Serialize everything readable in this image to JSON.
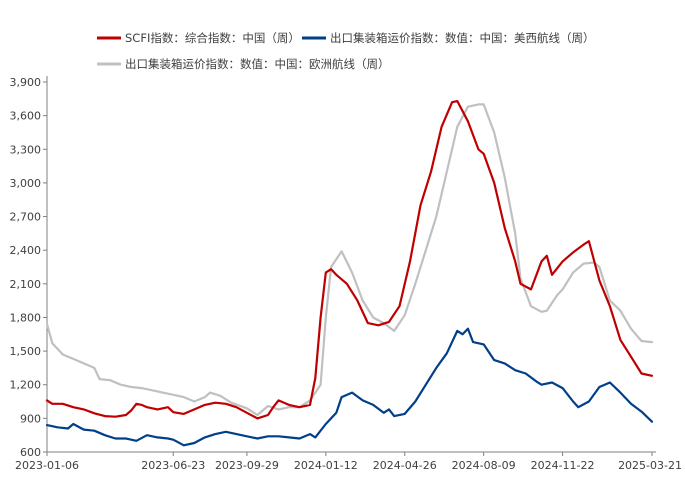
{
  "chart_data": {
    "type": "line",
    "title": "",
    "xlabel": "",
    "ylabel": "",
    "ylim": [
      600,
      3900
    ],
    "yticks": [
      600,
      900,
      1200,
      1500,
      1800,
      2100,
      2400,
      2700,
      3000,
      3300,
      3600,
      3900
    ],
    "ytick_labels": [
      "600",
      "900",
      "1,200",
      "1,500",
      "1,800",
      "2,100",
      "2,400",
      "2,700",
      "3,000",
      "3,300",
      "3,600",
      "3,900"
    ],
    "xlim": [
      "2023-01-06",
      "2025-03-21"
    ],
    "xticks": [
      "2023-01-06",
      "2023-06-23",
      "2023-09-29",
      "2024-01-12",
      "2024-04-26",
      "2024-08-09",
      "2024-11-22",
      "2025-03-21"
    ],
    "grid": false,
    "legend_position": "top",
    "series": [
      {
        "name": "SCFI指数：综合指数：中国（周）",
        "color": "#c00000",
        "points": [
          [
            "2023-01-06",
            1060
          ],
          [
            "2023-01-13",
            1030
          ],
          [
            "2023-01-27",
            1030
          ],
          [
            "2023-02-10",
            1000
          ],
          [
            "2023-02-24",
            980
          ],
          [
            "2023-03-10",
            945
          ],
          [
            "2023-03-24",
            920
          ],
          [
            "2023-04-07",
            915
          ],
          [
            "2023-04-21",
            930
          ],
          [
            "2023-04-28",
            970
          ],
          [
            "2023-05-05",
            1030
          ],
          [
            "2023-05-12",
            1020
          ],
          [
            "2023-05-19",
            1000
          ],
          [
            "2023-06-02",
            980
          ],
          [
            "2023-06-16",
            1000
          ],
          [
            "2023-06-23",
            955
          ],
          [
            "2023-07-07",
            940
          ],
          [
            "2023-07-21",
            980
          ],
          [
            "2023-08-04",
            1020
          ],
          [
            "2023-08-18",
            1040
          ],
          [
            "2023-09-01",
            1030
          ],
          [
            "2023-09-15",
            1000
          ],
          [
            "2023-09-29",
            950
          ],
          [
            "2023-10-13",
            900
          ],
          [
            "2023-10-27",
            930
          ],
          [
            "2023-11-03",
            1000
          ],
          [
            "2023-11-10",
            1060
          ],
          [
            "2023-11-24",
            1020
          ],
          [
            "2023-12-08",
            1000
          ],
          [
            "2023-12-22",
            1020
          ],
          [
            "2023-12-29",
            1260
          ],
          [
            "2024-01-05",
            1800
          ],
          [
            "2024-01-12",
            2200
          ],
          [
            "2024-01-19",
            2230
          ],
          [
            "2024-01-26",
            2180
          ],
          [
            "2024-02-09",
            2100
          ],
          [
            "2024-02-23",
            1950
          ],
          [
            "2024-03-08",
            1750
          ],
          [
            "2024-03-22",
            1730
          ],
          [
            "2024-04-05",
            1760
          ],
          [
            "2024-04-19",
            1900
          ],
          [
            "2024-05-03",
            2300
          ],
          [
            "2024-05-17",
            2800
          ],
          [
            "2024-05-31",
            3100
          ],
          [
            "2024-06-14",
            3500
          ],
          [
            "2024-06-28",
            3720
          ],
          [
            "2024-07-05",
            3730
          ],
          [
            "2024-07-19",
            3550
          ],
          [
            "2024-08-02",
            3300
          ],
          [
            "2024-08-09",
            3260
          ],
          [
            "2024-08-23",
            3000
          ],
          [
            "2024-09-06",
            2600
          ],
          [
            "2024-09-20",
            2300
          ],
          [
            "2024-09-27",
            2100
          ],
          [
            "2024-10-11",
            2050
          ],
          [
            "2024-10-25",
            2300
          ],
          [
            "2024-11-01",
            2350
          ],
          [
            "2024-11-08",
            2180
          ],
          [
            "2024-11-22",
            2300
          ],
          [
            "2024-12-06",
            2380
          ],
          [
            "2024-12-20",
            2450
          ],
          [
            "2024-12-27",
            2480
          ],
          [
            "2025-01-10",
            2130
          ],
          [
            "2025-01-24",
            1900
          ],
          [
            "2025-02-07",
            1600
          ],
          [
            "2025-02-21",
            1450
          ],
          [
            "2025-03-07",
            1300
          ],
          [
            "2025-03-21",
            1280
          ]
        ]
      },
      {
        "name": "出口集装箱运价指数：数值：中国：美西航线（周）",
        "color": "#003f8a",
        "points": [
          [
            "2023-01-06",
            840
          ],
          [
            "2023-01-20",
            820
          ],
          [
            "2023-02-03",
            810
          ],
          [
            "2023-02-10",
            850
          ],
          [
            "2023-02-24",
            800
          ],
          [
            "2023-03-10",
            790
          ],
          [
            "2023-03-24",
            750
          ],
          [
            "2023-04-07",
            720
          ],
          [
            "2023-04-21",
            720
          ],
          [
            "2023-05-05",
            700
          ],
          [
            "2023-05-19",
            750
          ],
          [
            "2023-06-02",
            730
          ],
          [
            "2023-06-16",
            720
          ],
          [
            "2023-06-23",
            710
          ],
          [
            "2023-07-07",
            660
          ],
          [
            "2023-07-21",
            680
          ],
          [
            "2023-08-04",
            730
          ],
          [
            "2023-08-18",
            760
          ],
          [
            "2023-09-01",
            780
          ],
          [
            "2023-09-15",
            760
          ],
          [
            "2023-09-29",
            740
          ],
          [
            "2023-10-13",
            720
          ],
          [
            "2023-10-27",
            740
          ],
          [
            "2023-11-10",
            740
          ],
          [
            "2023-11-24",
            730
          ],
          [
            "2023-12-08",
            720
          ],
          [
            "2023-12-22",
            760
          ],
          [
            "2023-12-29",
            730
          ],
          [
            "2024-01-12",
            850
          ],
          [
            "2024-01-26",
            950
          ],
          [
            "2024-02-02",
            1090
          ],
          [
            "2024-02-16",
            1130
          ],
          [
            "2024-03-01",
            1060
          ],
          [
            "2024-03-15",
            1020
          ],
          [
            "2024-03-29",
            950
          ],
          [
            "2024-04-05",
            980
          ],
          [
            "2024-04-12",
            920
          ],
          [
            "2024-04-26",
            940
          ],
          [
            "2024-05-10",
            1050
          ],
          [
            "2024-05-24",
            1200
          ],
          [
            "2024-06-07",
            1350
          ],
          [
            "2024-06-21",
            1480
          ],
          [
            "2024-07-05",
            1680
          ],
          [
            "2024-07-12",
            1650
          ],
          [
            "2024-07-19",
            1700
          ],
          [
            "2024-07-26",
            1580
          ],
          [
            "2024-08-09",
            1560
          ],
          [
            "2024-08-23",
            1420
          ],
          [
            "2024-09-06",
            1390
          ],
          [
            "2024-09-20",
            1330
          ],
          [
            "2024-10-04",
            1300
          ],
          [
            "2024-10-18",
            1230
          ],
          [
            "2024-10-25",
            1200
          ],
          [
            "2024-11-08",
            1220
          ],
          [
            "2024-11-22",
            1170
          ],
          [
            "2024-12-06",
            1050
          ],
          [
            "2024-12-13",
            1000
          ],
          [
            "2024-12-27",
            1050
          ],
          [
            "2025-01-10",
            1180
          ],
          [
            "2025-01-24",
            1220
          ],
          [
            "2025-02-07",
            1130
          ],
          [
            "2025-02-21",
            1030
          ],
          [
            "2025-03-07",
            960
          ],
          [
            "2025-03-21",
            870
          ]
        ]
      },
      {
        "name": "出口集装箱运价指数：数值：中国：欧洲航线（周）",
        "color": "#c0c0c0",
        "points": [
          [
            "2023-01-06",
            1740
          ],
          [
            "2023-01-13",
            1570
          ],
          [
            "2023-01-27",
            1470
          ],
          [
            "2023-02-10",
            1430
          ],
          [
            "2023-02-24",
            1390
          ],
          [
            "2023-03-10",
            1350
          ],
          [
            "2023-03-17",
            1250
          ],
          [
            "2023-03-31",
            1240
          ],
          [
            "2023-04-14",
            1200
          ],
          [
            "2023-04-28",
            1180
          ],
          [
            "2023-05-12",
            1170
          ],
          [
            "2023-05-26",
            1150
          ],
          [
            "2023-06-09",
            1130
          ],
          [
            "2023-06-23",
            1110
          ],
          [
            "2023-07-07",
            1090
          ],
          [
            "2023-07-21",
            1050
          ],
          [
            "2023-08-04",
            1090
          ],
          [
            "2023-08-11",
            1130
          ],
          [
            "2023-08-25",
            1100
          ],
          [
            "2023-09-08",
            1040
          ],
          [
            "2023-09-29",
            990
          ],
          [
            "2023-10-13",
            930
          ],
          [
            "2023-10-27",
            1010
          ],
          [
            "2023-11-10",
            980
          ],
          [
            "2023-11-24",
            1000
          ],
          [
            "2023-12-08",
            1000
          ],
          [
            "2023-12-22",
            1060
          ],
          [
            "2024-01-05",
            1200
          ],
          [
            "2024-01-12",
            1800
          ],
          [
            "2024-01-19",
            2250
          ],
          [
            "2024-02-02",
            2390
          ],
          [
            "2024-02-16",
            2200
          ],
          [
            "2024-03-01",
            1950
          ],
          [
            "2024-03-15",
            1800
          ],
          [
            "2024-03-29",
            1750
          ],
          [
            "2024-04-12",
            1680
          ],
          [
            "2024-04-26",
            1820
          ],
          [
            "2024-05-10",
            2100
          ],
          [
            "2024-05-24",
            2400
          ],
          [
            "2024-06-07",
            2700
          ],
          [
            "2024-06-21",
            3100
          ],
          [
            "2024-07-05",
            3500
          ],
          [
            "2024-07-19",
            3680
          ],
          [
            "2024-08-02",
            3700
          ],
          [
            "2024-08-09",
            3700
          ],
          [
            "2024-08-23",
            3450
          ],
          [
            "2024-09-06",
            3050
          ],
          [
            "2024-09-20",
            2550
          ],
          [
            "2024-09-27",
            2150
          ],
          [
            "2024-10-11",
            1900
          ],
          [
            "2024-10-25",
            1850
          ],
          [
            "2024-11-01",
            1860
          ],
          [
            "2024-11-15",
            2000
          ],
          [
            "2024-11-22",
            2050
          ],
          [
            "2024-12-06",
            2200
          ],
          [
            "2024-12-20",
            2280
          ],
          [
            "2025-01-03",
            2290
          ],
          [
            "2025-01-10",
            2250
          ],
          [
            "2025-01-24",
            1950
          ],
          [
            "2025-02-07",
            1860
          ],
          [
            "2025-02-21",
            1700
          ],
          [
            "2025-03-07",
            1590
          ],
          [
            "2025-03-21",
            1580
          ]
        ]
      }
    ]
  }
}
